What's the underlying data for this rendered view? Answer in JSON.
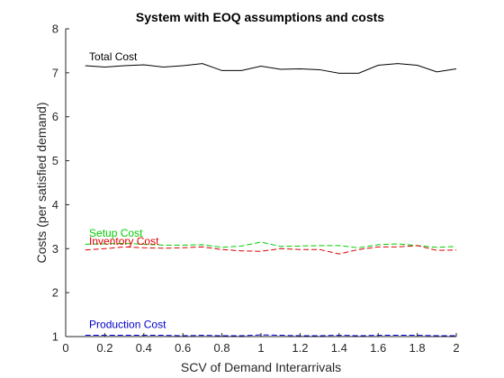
{
  "chart_data": {
    "type": "line",
    "title": "System with EOQ assumptions and costs",
    "xlabel": "SCV of Demand Interarrivals",
    "ylabel": "Costs (per satisfied demand)",
    "xlim": [
      0,
      2
    ],
    "ylim": [
      1,
      8
    ],
    "xticks": [
      0,
      0.2,
      0.4,
      0.6,
      0.8,
      1,
      1.2,
      1.4,
      1.6,
      1.8,
      2
    ],
    "xtick_labels": [
      "0",
      "0.2",
      "0.4",
      "0.6",
      "0.8",
      "1",
      "1.2",
      "1.4",
      "1.6",
      "1.8",
      "2"
    ],
    "yticks": [
      1,
      2,
      3,
      4,
      5,
      6,
      7,
      8
    ],
    "ytick_labels": [
      "1",
      "2",
      "3",
      "4",
      "5",
      "6",
      "7",
      "8"
    ],
    "grid": false,
    "x": [
      0.1,
      0.2,
      0.3,
      0.4,
      0.5,
      0.6,
      0.7,
      0.8,
      0.9,
      1.0,
      1.1,
      1.2,
      1.3,
      1.4,
      1.5,
      1.6,
      1.7,
      1.8,
      1.9,
      2.0
    ],
    "series": [
      {
        "name": "Total Cost",
        "color": "#000000",
        "dash": "solid",
        "values": [
          7.16,
          7.13,
          7.16,
          7.18,
          7.13,
          7.16,
          7.21,
          7.05,
          7.05,
          7.15,
          7.08,
          7.09,
          7.07,
          6.99,
          6.99,
          7.17,
          7.21,
          7.17,
          7.02,
          7.09
        ]
      },
      {
        "name": "Setup Cost",
        "color": "#00cc00",
        "dash": "dashed",
        "values": [
          3.1,
          3.11,
          3.12,
          3.1,
          3.08,
          3.08,
          3.09,
          3.03,
          3.06,
          3.15,
          3.05,
          3.06,
          3.07,
          3.07,
          3.02,
          3.09,
          3.11,
          3.07,
          3.03,
          3.05
        ]
      },
      {
        "name": "Inventory Cost",
        "color": "#dd0000",
        "dash": "dashed",
        "values": [
          2.97,
          3.0,
          3.04,
          3.02,
          3.01,
          3.02,
          3.04,
          2.98,
          2.95,
          2.94,
          3.0,
          2.98,
          2.98,
          2.88,
          2.98,
          3.04,
          3.04,
          3.07,
          2.96,
          2.97
        ]
      },
      {
        "name": "Production Cost",
        "color": "#0000cc",
        "dash": "dashed",
        "values": [
          1.03,
          1.03,
          1.03,
          1.03,
          1.03,
          1.02,
          1.03,
          1.02,
          1.02,
          1.04,
          1.03,
          1.02,
          1.02,
          1.03,
          1.02,
          1.03,
          1.03,
          1.03,
          1.02,
          1.02
        ]
      }
    ],
    "annotations": [
      {
        "text": "Total Cost",
        "x": 0.12,
        "y": 7.28,
        "color": "#000000"
      },
      {
        "text": "Setup Cost",
        "x": 0.12,
        "y": 3.27,
        "color": "#00cc00"
      },
      {
        "text": "Inventory Cost",
        "x": 0.12,
        "y": 3.09,
        "color": "#dd0000"
      },
      {
        "text": "Production Cost",
        "x": 0.12,
        "y": 1.19,
        "color": "#0000cc"
      }
    ]
  }
}
